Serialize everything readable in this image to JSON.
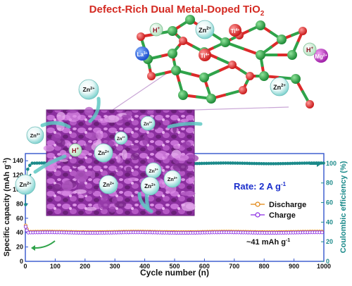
{
  "header": {
    "title": "Defect-Rich Dual Metal-Doped TiO",
    "title_sub": "2"
  },
  "crystal": {
    "labels": {
      "h1": "H",
      "h1_sup": "+",
      "zn1": "Zn",
      "zn1_sup": "2+",
      "ti1": "Ti",
      "ti1_sup": "4+",
      "la": "La",
      "la_sup": "3+",
      "ti2": "Ti",
      "ti2_sup": "4+",
      "h2": "H",
      "h2_sup": "+",
      "mg": "Mg",
      "mg_sup": "2+",
      "zn2": "Zn",
      "zn2_sup": "2+"
    }
  },
  "sem": {
    "ion_label": "Zn",
    "ion_sup": "2+",
    "proton_label": "H",
    "proton_sup": "+"
  },
  "annotations": {
    "rate_text": "Rate: 2 A g",
    "rate_sup": "-1",
    "capacity_text": "~41 mAh g",
    "capacity_sup": "-1"
  },
  "chart_data": {
    "type": "scatter",
    "xlabel": "Cycle number (n)",
    "ylabel_left": "Specific capacity (mAh g",
    "ylabel_left_sup": "-1",
    "ylabel_left_end": ")",
    "ylabel_right": "Coulombic efficiency (%)",
    "xlim": [
      0,
      1000
    ],
    "ylim_left": [
      0,
      150
    ],
    "ylim_right": [
      0,
      110
    ],
    "xticks": [
      0,
      100,
      200,
      300,
      400,
      500,
      600,
      700,
      800,
      900,
      1000
    ],
    "yticks_left": [
      0,
      20,
      40,
      60,
      80,
      100,
      120,
      140
    ],
    "yticks_right": [
      0,
      20,
      40,
      60,
      80,
      100
    ],
    "legend": {
      "placement": "right",
      "entries": [
        "Discharge",
        "Charge"
      ]
    },
    "series": [
      {
        "name": "Discharge",
        "axis": "left",
        "color": "#e0820c",
        "start": [
          [
            1,
            50
          ],
          [
            5,
            45
          ],
          [
            10,
            41
          ]
        ],
        "steady": 41
      },
      {
        "name": "Charge",
        "axis": "left",
        "color": "#8a2be2",
        "start": [
          [
            1,
            48
          ],
          [
            5,
            43
          ],
          [
            10,
            40
          ]
        ],
        "steady": 40
      },
      {
        "axis": "right",
        "color": "#1b8a8a",
        "start": [
          [
            1,
            58
          ],
          [
            4,
            84
          ],
          [
            8,
            94
          ],
          [
            15,
            98
          ]
        ],
        "steady": 100
      }
    ]
  },
  "colors": {
    "title": "#d42a22",
    "frame": "#3355cc",
    "ce_axis": "#1b8a8a",
    "rate_text": "#1a2ecc",
    "oxygen": "#dc2a2a",
    "titanium": "#2fa34a",
    "sem": "#8b2f9f"
  }
}
